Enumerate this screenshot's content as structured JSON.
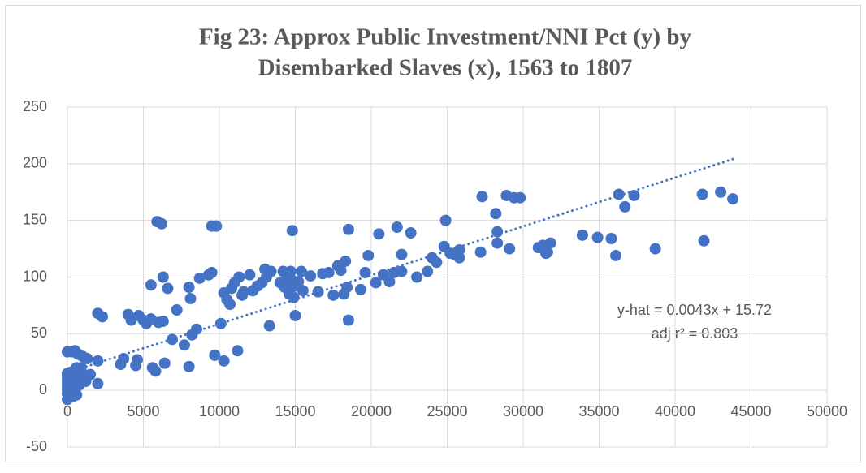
{
  "chart_data": {
    "type": "scatter",
    "title": [
      "Fig 23: Approx Public Investment/NNI Pct (y) by",
      "Disembarked Slaves (x), 1563 to 1807"
    ],
    "series": [
      {
        "color": "#4472c4",
        "x": [
          0,
          0,
          0,
          0,
          0,
          0,
          0,
          0,
          100,
          100,
          200,
          200,
          300,
          300,
          400,
          500,
          500,
          600,
          700,
          800,
          900,
          1000,
          1200,
          1500,
          0,
          300,
          500,
          700,
          1000,
          1300,
          800,
          400,
          200,
          600,
          900,
          2000,
          2300,
          2000,
          2000,
          3500,
          3700,
          4000,
          4200,
          4500,
          4600,
          4700,
          5000,
          5200,
          5500,
          5500,
          5600,
          5800,
          5900,
          6000,
          6200,
          6300,
          6300,
          6400,
          6600,
          6900,
          7200,
          7700,
          8000,
          8000,
          8100,
          8200,
          8500,
          8700,
          9300,
          9500,
          9500,
          9800,
          9700,
          10100,
          10300,
          10300,
          10500,
          10700,
          10800,
          11000,
          11200,
          11300,
          11600,
          11500,
          12000,
          12200,
          12500,
          12800,
          13000,
          13100,
          13300,
          13400,
          14000,
          14200,
          14300,
          14500,
          14600,
          14700,
          14800,
          14800,
          14900,
          15000,
          15000,
          15200,
          15400,
          15500,
          16000,
          16500,
          16800,
          17200,
          17500,
          17800,
          18000,
          18200,
          18300,
          18500,
          18500,
          18400,
          19300,
          19600,
          19800,
          20300,
          20500,
          20800,
          21200,
          21500,
          21700,
          22000,
          22000,
          22600,
          23000,
          23700,
          24000,
          24300,
          24800,
          24900,
          25200,
          25500,
          25800,
          25800,
          27200,
          27300,
          28200,
          28300,
          28300,
          28900,
          29100,
          29400,
          29800,
          31000,
          31300,
          31500,
          31800,
          31600,
          33900,
          34900,
          35800,
          36100,
          36300,
          36700,
          37300,
          38700,
          41800,
          41900,
          43000,
          43800
        ],
        "values": [
          -8,
          -3,
          0,
          3,
          6,
          9,
          12,
          15,
          2,
          8,
          5,
          12,
          -2,
          10,
          15,
          0,
          7,
          -4,
          12,
          5,
          10,
          14,
          8,
          14,
          34,
          34,
          35,
          32,
          30,
          28,
          15,
          -5,
          16,
          20,
          20,
          68,
          65,
          26,
          6,
          23,
          28,
          67,
          62,
          22,
          27,
          66,
          62,
          59,
          63,
          93,
          20,
          17,
          149,
          60,
          147,
          100,
          61,
          24,
          90,
          45,
          71,
          40,
          21,
          91,
          81,
          49,
          54,
          99,
          102,
          104,
          145,
          145,
          31,
          59,
          86,
          26,
          80,
          76,
          90,
          95,
          35,
          100,
          87,
          84,
          102,
          88,
          92,
          95,
          107,
          100,
          57,
          105,
          95,
          105,
          91,
          100,
          85,
          105,
          141,
          97,
          82,
          92,
          66,
          96,
          105,
          88,
          101,
          87,
          103,
          104,
          84,
          110,
          106,
          85,
          114,
          62,
          142,
          91,
          89,
          104,
          119,
          95,
          138,
          102,
          96,
          104,
          144,
          120,
          105,
          139,
          100,
          105,
          117,
          113,
          127,
          150,
          121,
          120,
          117,
          124,
          122,
          171,
          156,
          130,
          140,
          172,
          125,
          170,
          170,
          126,
          128,
          121,
          130,
          122,
          137,
          135,
          134,
          119,
          173,
          162,
          172,
          125,
          173,
          132,
          175,
          169
        ]
      }
    ],
    "trendline": {
      "slope": 0.0043,
      "intercept": 15.72,
      "x_range": [
        0,
        43800
      ],
      "color": "#4472c4"
    },
    "annotations": [
      "y-hat = 0.0043x + 15.72",
      "adj r² = 0.803"
    ],
    "xlim": [
      0,
      50000
    ],
    "xticks": [
      0,
      5000,
      10000,
      15000,
      20000,
      25000,
      30000,
      35000,
      40000,
      45000,
      50000
    ],
    "ylim": [
      -50,
      250
    ],
    "yticks": [
      -50,
      0,
      50,
      100,
      150,
      200,
      250
    ],
    "grid": true
  }
}
